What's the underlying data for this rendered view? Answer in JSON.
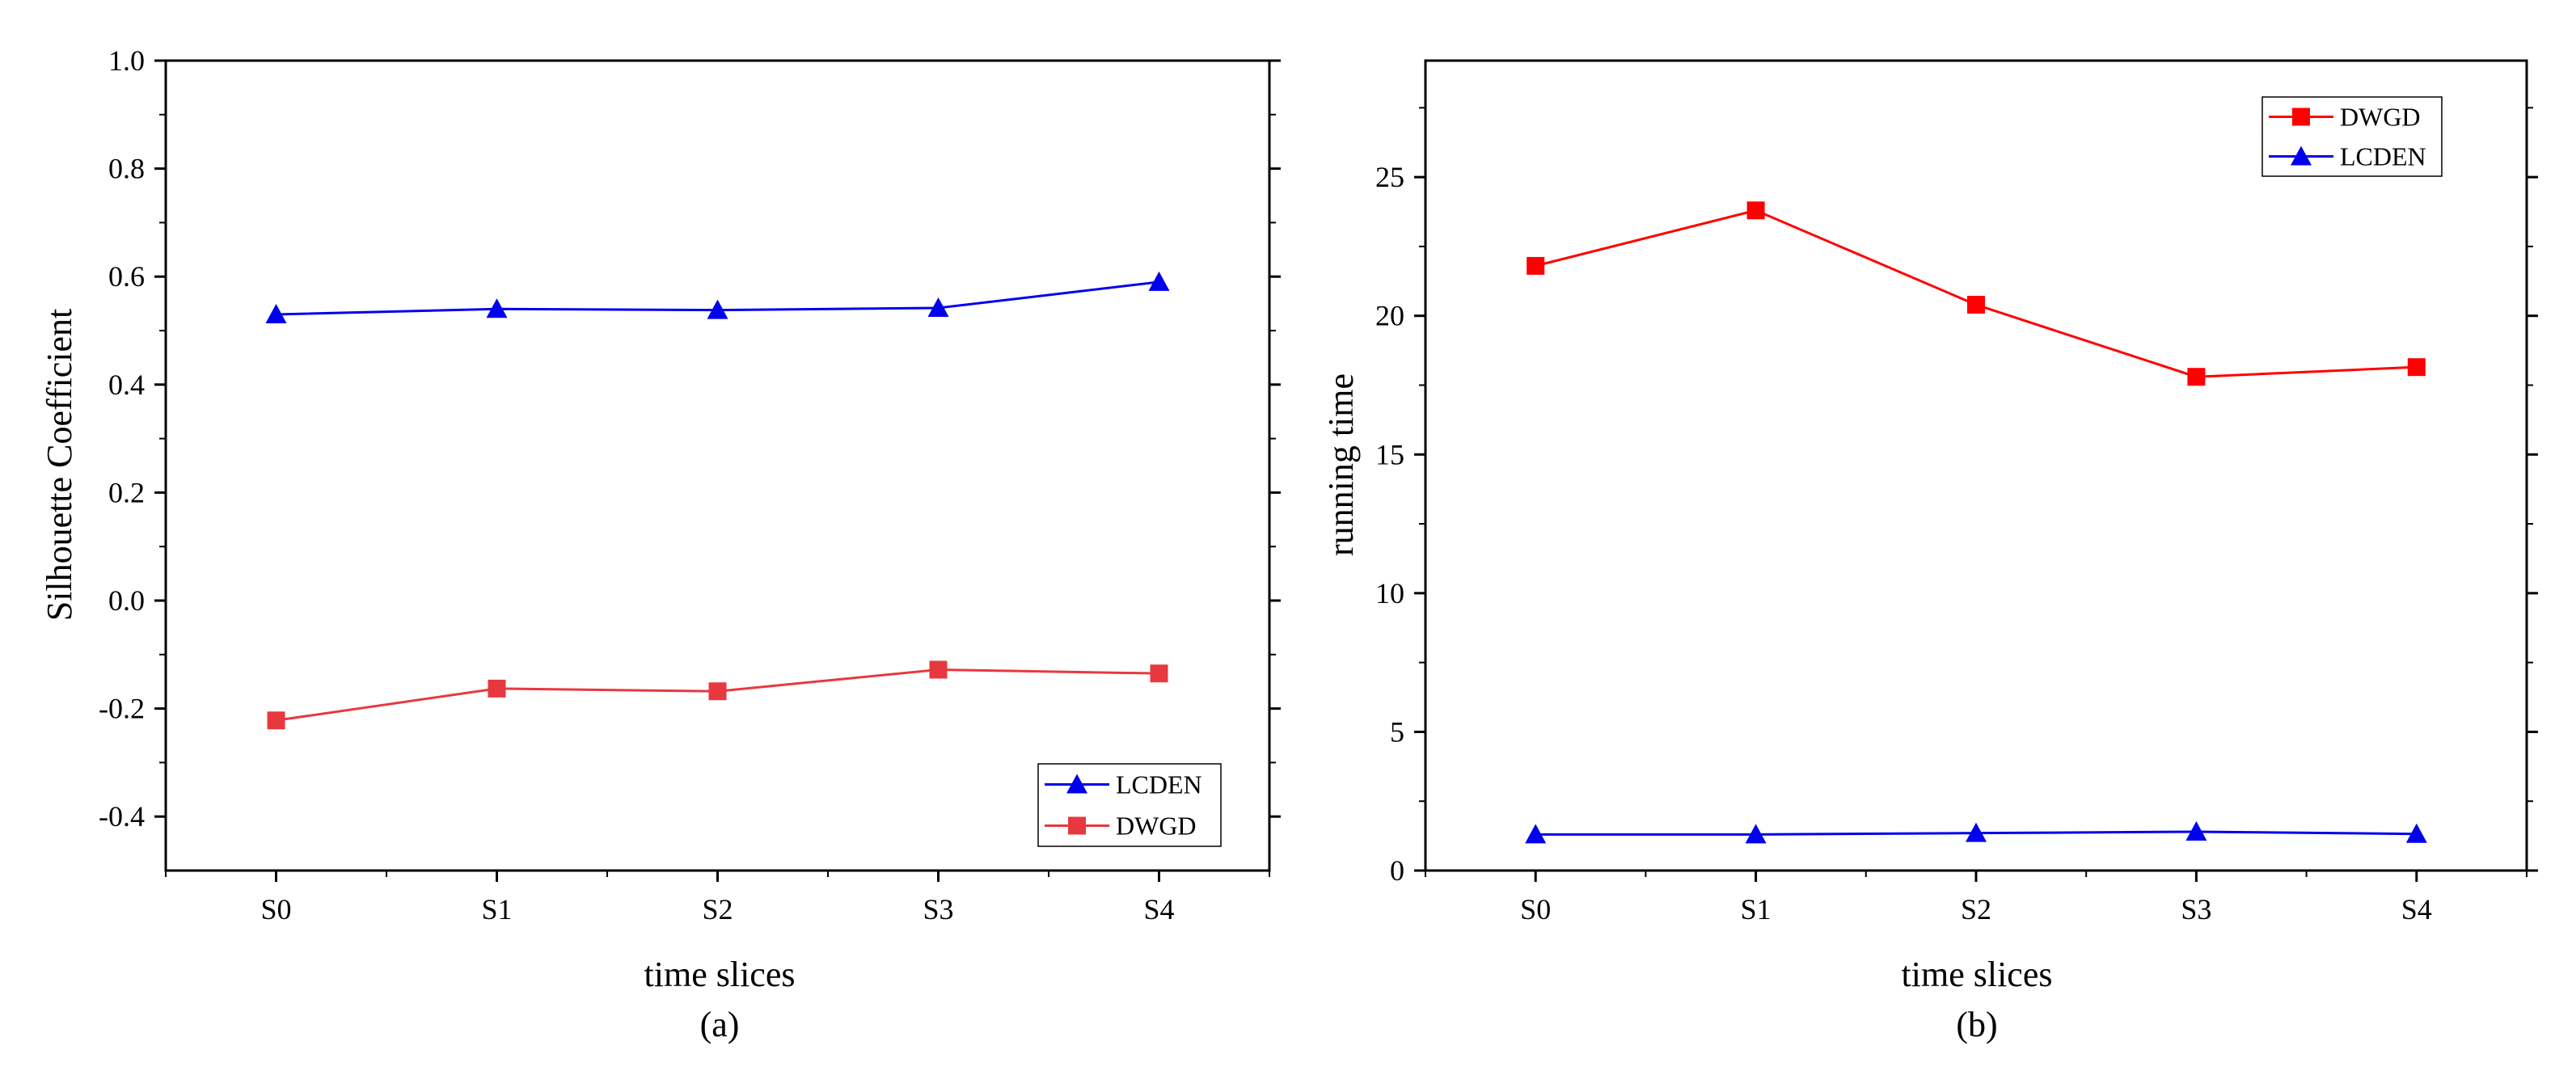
{
  "chart_data": [
    {
      "type": "line",
      "caption": "(a)",
      "xlabel": "time slices",
      "ylabel": "Silhouette Coefficient",
      "categories": [
        "S0",
        "S1",
        "S2",
        "S3",
        "S4"
      ],
      "ylim": [
        -0.5,
        1.0
      ],
      "yticks": [
        -0.4,
        -0.2,
        0.0,
        0.2,
        0.4,
        0.6,
        0.8,
        1.0
      ],
      "ytick_labels": [
        "-0.4",
        "-0.2",
        "0.0",
        "0.2",
        "0.4",
        "0.6",
        "0.8",
        "1.0"
      ],
      "legend_position": "bottom-right",
      "series": [
        {
          "name": "LCDEN",
          "color": "#0000ee",
          "marker": "triangle",
          "values": [
            0.53,
            0.54,
            0.538,
            0.542,
            0.59
          ]
        },
        {
          "name": "DWGD",
          "color": "#e8383f",
          "marker": "square",
          "values": [
            -0.222,
            -0.163,
            -0.168,
            -0.128,
            -0.135
          ]
        }
      ]
    },
    {
      "type": "line",
      "caption": "(b)",
      "xlabel": "time slices",
      "ylabel": "running time",
      "categories": [
        "S0",
        "S1",
        "S2",
        "S3",
        "S4"
      ],
      "ylim": [
        0,
        29.2
      ],
      "yticks": [
        0,
        5,
        10,
        15,
        20,
        25
      ],
      "ytick_labels": [
        "0",
        "5",
        "10",
        "15",
        "20",
        "25"
      ],
      "legend_position": "top-right",
      "series": [
        {
          "name": "DWGD",
          "color": "#ff0000",
          "marker": "square",
          "values": [
            21.8,
            23.8,
            20.4,
            17.8,
            18.15
          ]
        },
        {
          "name": "LCDEN",
          "color": "#0000ee",
          "marker": "triangle",
          "values": [
            1.3,
            1.3,
            1.35,
            1.4,
            1.32
          ]
        }
      ]
    }
  ]
}
